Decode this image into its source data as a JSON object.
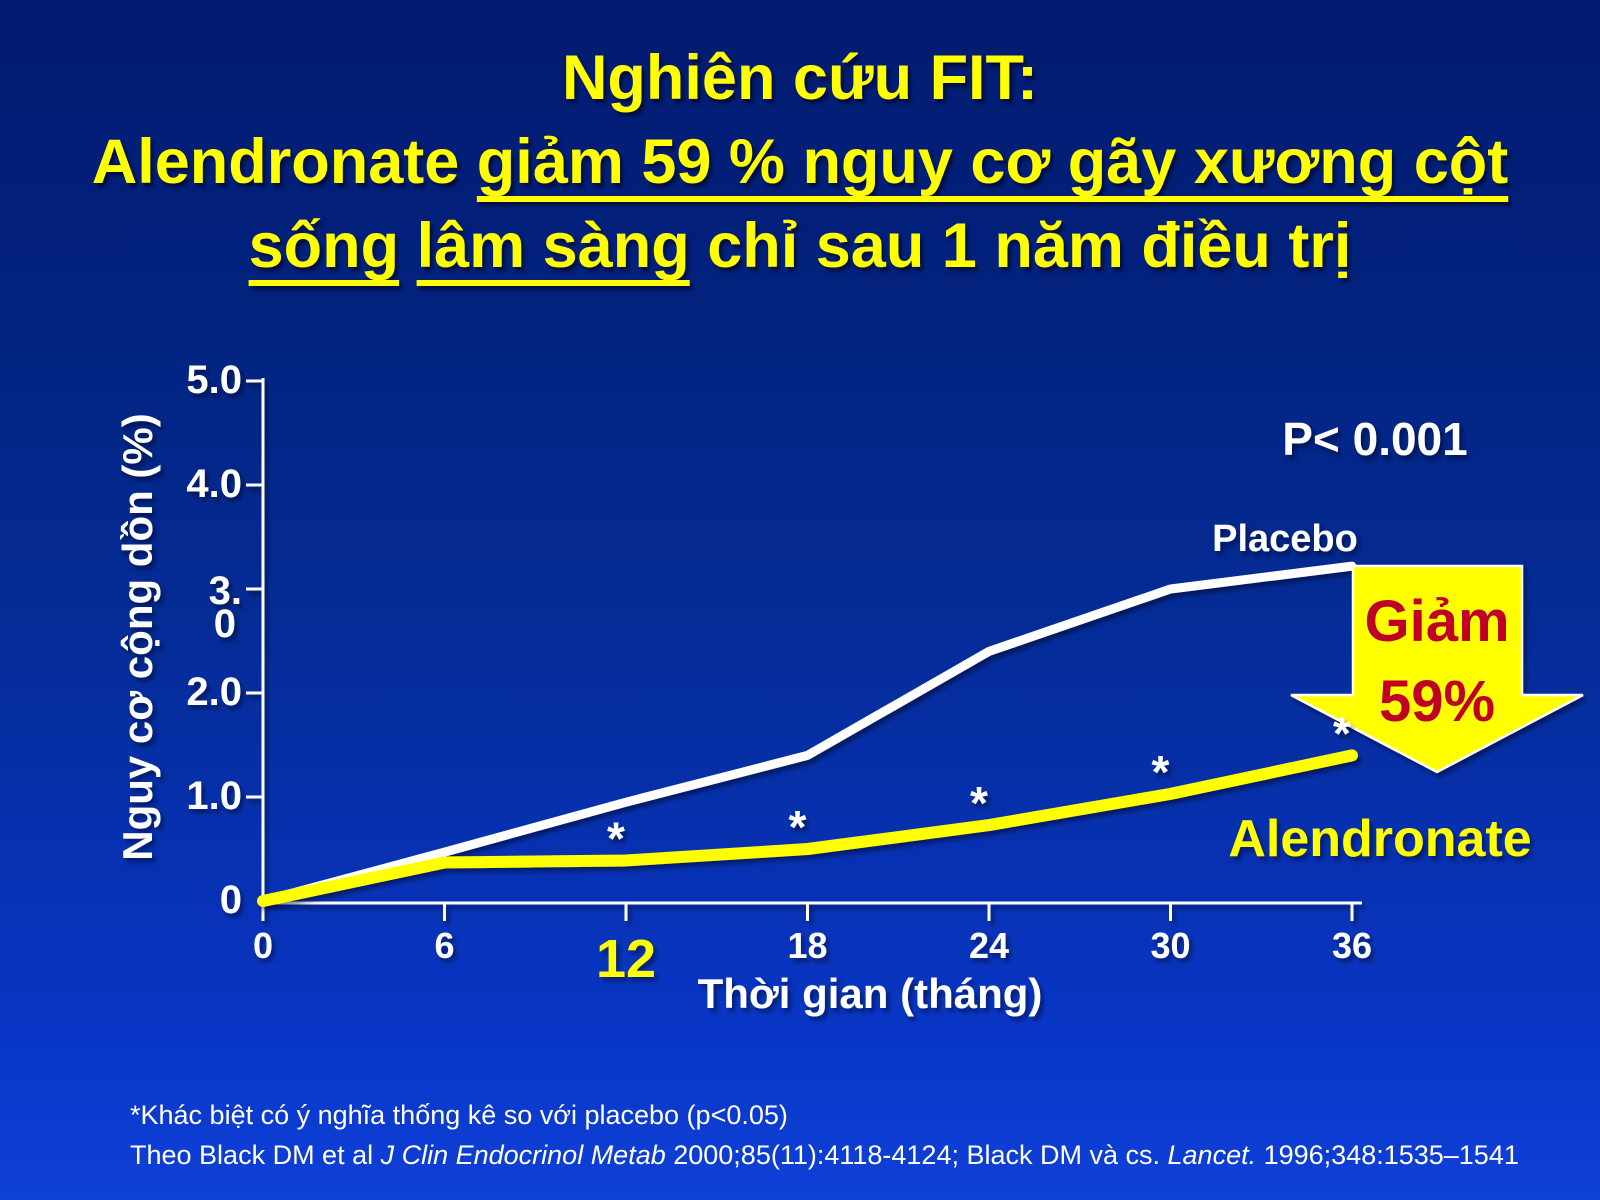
{
  "slide": {
    "title": {
      "line1": "Nghiên cứu FIT:",
      "line2_normal": "Alendronate ",
      "line2_underlined": "giảm 59 % nguy cơ gãy xương cột",
      "line3_underlined1": "sống",
      "sep": " ",
      "line3_underlined2": "lâm sàng",
      "line3_rest": " chỉ sau 1 năm điều trị"
    },
    "footnote": "*Khác biệt có ý nghĩa thống kê so với placebo (p<0.05)",
    "reference": {
      "pre": "Theo Black DM et al ",
      "italic1": "J Clin Endocrinol Metab",
      "mid": " 2000;85(11):4118-4124; Black DM và cs. ",
      "italic2": "Lancet.",
      "post": " 1996;348:1535–1541"
    }
  },
  "annotations": {
    "p_value": "P< 0.001",
    "placebo_label": "Placebo",
    "alendronate_label": "Alendronate",
    "arrow_line1": "Giảm",
    "arrow_line2": "59%"
  },
  "colors": {
    "background_top": "#021b70",
    "background_bottom": "#0f40d8",
    "title": "#ffff00",
    "placebo_line": "#ffffff",
    "alendronate_line": "#ffff00",
    "arrow_fill": "#ffff00",
    "arrow_text": "#c00021",
    "axis": "#ffffff"
  },
  "chart_data": {
    "type": "line",
    "x": [
      0,
      6,
      12,
      18,
      24,
      30,
      36
    ],
    "series": [
      {
        "name": "Placebo",
        "color": "#ffffff",
        "values": [
          0,
          0.47,
          0.95,
          1.4,
          2.4,
          3.0,
          3.22
        ]
      },
      {
        "name": "Alendronate",
        "color": "#ffff00",
        "values": [
          0,
          0.37,
          0.39,
          0.5,
          0.73,
          1.03,
          1.4
        ]
      }
    ],
    "significance_marker": "*",
    "significant_x": [
      12,
      18,
      24,
      30,
      36
    ],
    "xlabel": "Thời gian (tháng)",
    "ylabel": "Nguy cơ cộng dồn (%)",
    "ylim": [
      0,
      5
    ],
    "xticks": [
      0,
      6,
      12,
      18,
      24,
      30,
      36
    ],
    "highlighted_xtick": 12,
    "ytick_display": [
      {
        "value": 5,
        "label": "5.0"
      },
      {
        "value": 4,
        "label": "4.0"
      },
      {
        "value": 3,
        "label": "3.",
        "label2": "0"
      },
      {
        "value": 2,
        "label": "2.0"
      },
      {
        "value": 1,
        "label": "1.0"
      },
      {
        "value": 0,
        "label": "0"
      }
    ],
    "grid": false,
    "legend_position": "labels-on-chart"
  }
}
